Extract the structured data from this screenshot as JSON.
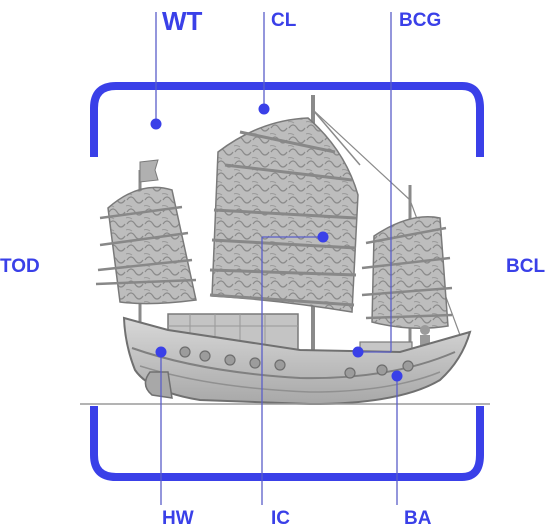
{
  "labels": {
    "wt": "WT",
    "cl": "CL",
    "bcg": "BCG",
    "tod": "TOD",
    "bcl": "BCL",
    "hw": "HW",
    "ic": "IC",
    "ba": "BA"
  },
  "colors": {
    "accent": "#3a40e8",
    "line": "#5a5ec8",
    "ship_hull": "#c9c9c9",
    "sail": "#b5b5b5",
    "outline": "#7a7a7a"
  }
}
